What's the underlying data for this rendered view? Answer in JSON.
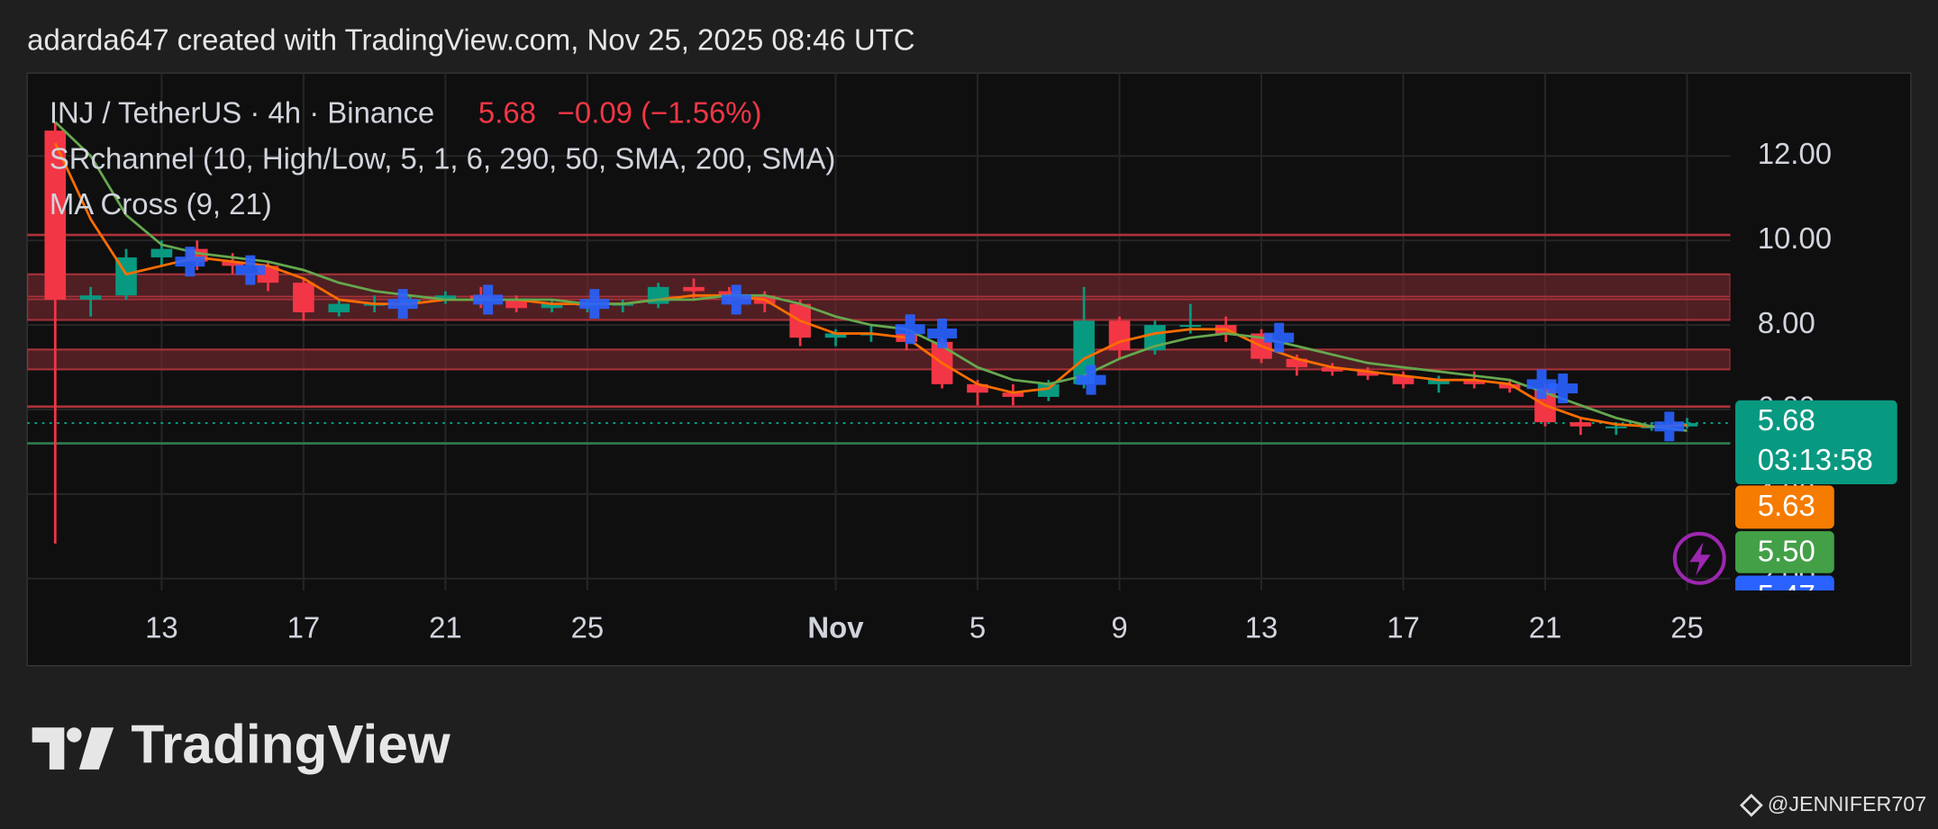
{
  "header": {
    "caption": "adarda647 created with TradingView.com, Nov 25, 2025 08:46 UTC"
  },
  "chart_data": {
    "type": "candlestick",
    "symbol": "INJ / TetherUS · 4h · Binance",
    "last_price": 5.68,
    "change_label": "−0.09 (−1.56%)",
    "indicators": [
      "SRchannel (10, High/Low, 5, 1, 6, 290, 50, SMA, 200, SMA)",
      "MA Cross (9, 21)"
    ],
    "x": [
      10,
      11,
      12,
      13,
      14,
      15,
      16,
      17,
      18,
      19,
      20,
      21,
      22,
      23,
      24,
      25,
      26,
      27,
      28,
      29,
      30,
      31,
      32,
      33,
      34,
      35,
      36,
      37,
      38,
      39,
      40,
      41,
      42,
      43,
      44,
      45,
      46,
      47,
      48,
      49,
      50,
      51,
      52,
      53,
      54,
      55,
      56
    ],
    "open": [
      12.6,
      8.6,
      8.7,
      9.6,
      9.8,
      9.5,
      9.4,
      9.0,
      8.3,
      8.5,
      8.5,
      8.6,
      8.7,
      8.6,
      8.4,
      8.5,
      8.5,
      8.5,
      8.9,
      8.8,
      8.7,
      8.5,
      7.7,
      7.8,
      7.8,
      7.6,
      6.6,
      6.4,
      6.3,
      6.6,
      8.1,
      7.4,
      8.0,
      8.0,
      7.8,
      7.2,
      7.0,
      6.9,
      6.8,
      6.6,
      6.7,
      6.6,
      6.5,
      5.7,
      5.6,
      5.6,
      5.6
    ],
    "high": [
      12.8,
      8.9,
      9.8,
      10.0,
      10.0,
      9.7,
      9.5,
      9.1,
      8.6,
      8.7,
      8.7,
      8.8,
      8.9,
      8.7,
      8.6,
      8.6,
      8.6,
      9.0,
      9.1,
      8.9,
      8.8,
      8.6,
      7.9,
      8.0,
      7.9,
      7.7,
      6.7,
      6.6,
      6.7,
      8.9,
      8.2,
      8.1,
      8.5,
      8.2,
      7.9,
      7.3,
      7.1,
      7.0,
      6.9,
      6.8,
      6.9,
      6.7,
      6.6,
      5.8,
      5.7,
      5.7,
      5.8
    ],
    "low": [
      2.83,
      8.2,
      8.6,
      9.4,
      9.3,
      9.2,
      8.8,
      8.1,
      8.2,
      8.3,
      8.4,
      8.5,
      8.4,
      8.3,
      8.3,
      8.3,
      8.3,
      8.4,
      8.6,
      8.5,
      8.3,
      7.5,
      7.5,
      7.6,
      7.4,
      6.5,
      6.1,
      6.1,
      6.2,
      6.5,
      7.2,
      7.3,
      7.8,
      7.6,
      7.1,
      6.8,
      6.8,
      6.7,
      6.5,
      6.4,
      6.5,
      6.4,
      5.6,
      5.4,
      5.4,
      5.5,
      5.55
    ],
    "close": [
      8.6,
      8.7,
      9.6,
      9.8,
      9.5,
      9.4,
      9.0,
      8.3,
      8.5,
      8.5,
      8.6,
      8.7,
      8.6,
      8.4,
      8.5,
      8.5,
      8.5,
      8.9,
      8.8,
      8.7,
      8.5,
      7.7,
      7.8,
      7.8,
      7.6,
      6.6,
      6.4,
      6.3,
      6.6,
      8.1,
      7.4,
      8.0,
      8.0,
      7.8,
      7.2,
      7.0,
      6.9,
      6.8,
      6.6,
      6.7,
      6.6,
      6.5,
      5.7,
      5.6,
      5.6,
      5.6,
      5.68
    ],
    "up_color": "#089981",
    "down_color": "#f23645",
    "ma_fast": {
      "color": "#ff6d00",
      "values": [
        12.3,
        10.5,
        9.2,
        9.4,
        9.6,
        9.5,
        9.4,
        9.1,
        8.6,
        8.5,
        8.5,
        8.6,
        8.6,
        8.6,
        8.5,
        8.5,
        8.5,
        8.6,
        8.7,
        8.7,
        8.6,
        8.1,
        7.8,
        7.8,
        7.7,
        7.1,
        6.6,
        6.4,
        6.5,
        7.2,
        7.6,
        7.8,
        7.9,
        7.9,
        7.5,
        7.2,
        7.0,
        6.9,
        6.8,
        6.7,
        6.7,
        6.6,
        6.1,
        5.8,
        5.65,
        5.6,
        5.63
      ]
    },
    "ma_slow": {
      "color": "#66a84f",
      "values": [
        12.8,
        12.0,
        10.6,
        9.9,
        9.7,
        9.6,
        9.5,
        9.3,
        9.0,
        8.8,
        8.7,
        8.6,
        8.6,
        8.6,
        8.6,
        8.5,
        8.5,
        8.6,
        8.6,
        8.7,
        8.7,
        8.5,
        8.2,
        8.0,
        7.9,
        7.5,
        7.0,
        6.7,
        6.6,
        6.8,
        7.2,
        7.5,
        7.7,
        7.8,
        7.7,
        7.5,
        7.3,
        7.1,
        7.0,
        6.9,
        6.8,
        6.7,
        6.4,
        6.1,
        5.8,
        5.6,
        5.5
      ]
    },
    "zones": [
      [
        9.2,
        8.67
      ],
      [
        8.61,
        8.12
      ],
      [
        7.42,
        6.95
      ]
    ],
    "zone_color": "#7a2a30",
    "levels": [
      10.13,
      6.07
    ],
    "support": 5.2,
    "signals": {
      "color": "#2962ff",
      "x": [
        13.8,
        15.5,
        19.8,
        22.2,
        25.2,
        29.2,
        34.1,
        35.0,
        39.2,
        44.5,
        51.9,
        52.5,
        55.5
      ],
      "values": [
        9.5,
        9.3,
        8.5,
        8.6,
        8.5,
        8.6,
        7.9,
        7.8,
        6.7,
        7.7,
        6.6,
        6.5,
        5.6
      ]
    },
    "price_badges": [
      {
        "value": 5.68,
        "label": "5.68",
        "color": "#089981"
      },
      {
        "value": 5.63,
        "label": "5.63",
        "color": "#f57c00"
      },
      {
        "value": 5.5,
        "label": "5.50",
        "color": "#43a047"
      },
      {
        "value": 5.47,
        "label": "5.47",
        "color": "#2962ff"
      }
    ],
    "countdown": "03:13:58",
    "xlim": [
      9.21,
      57.22
    ],
    "ylim": [
      1.72,
      13.96
    ],
    "xticks": [
      13,
      17,
      21,
      25,
      {
        "value": 32,
        "label": "Nov"
      },
      {
        "value": 36,
        "label": "5"
      },
      {
        "value": 40,
        "label": "9"
      },
      {
        "value": 44,
        "label": "13"
      },
      {
        "value": 48,
        "label": "17"
      },
      {
        "value": 52,
        "label": "21"
      },
      {
        "value": 56,
        "label": "25"
      }
    ],
    "yticks": [
      {
        "value": 12,
        "label": "12.00"
      },
      {
        "value": 10,
        "label": "10.00"
      },
      {
        "value": 8,
        "label": "8.00"
      },
      {
        "value": 6,
        "label": "6.00"
      },
      {
        "value": 4,
        "label": "4.00"
      },
      {
        "value": 2,
        "label": "2.00"
      }
    ],
    "grid": true
  },
  "footer": {
    "logo": "TradingView",
    "watermark": "@JENNIFER707"
  }
}
